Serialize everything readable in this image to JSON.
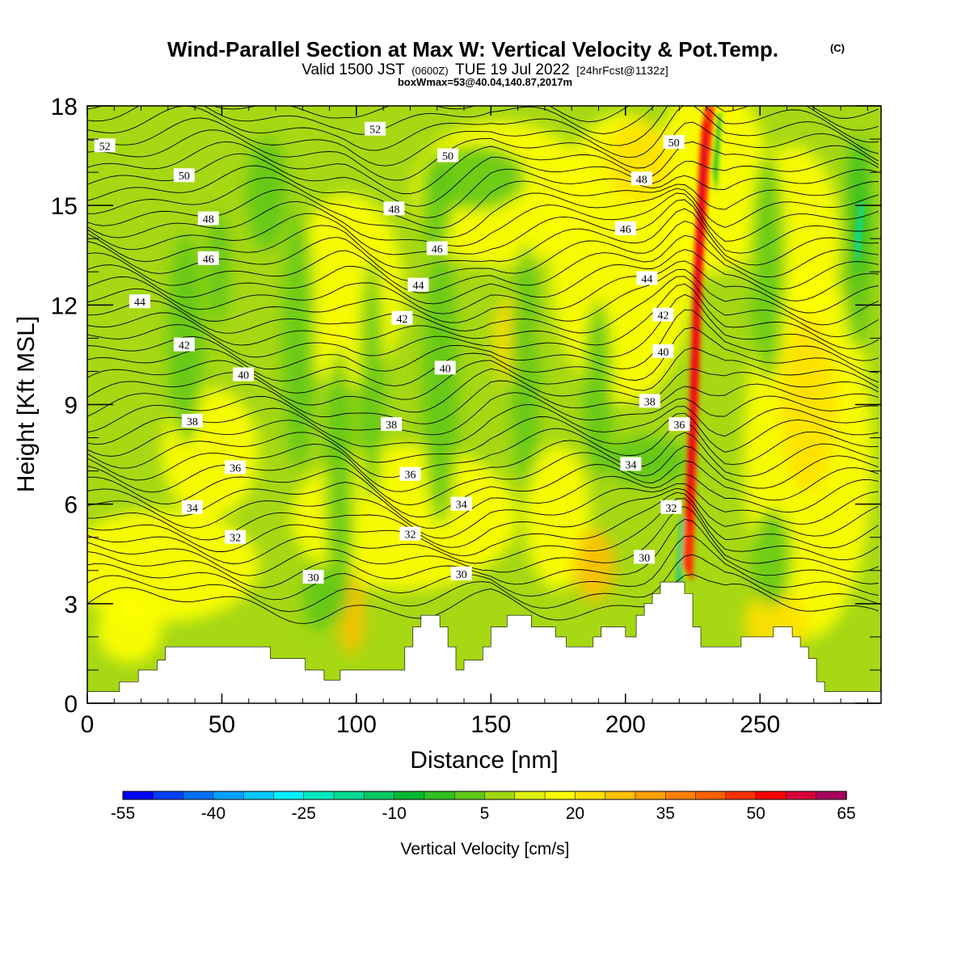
{
  "chart_data": {
    "type": "heatmap",
    "title_main": "Wind-Parallel Section at Max W: Vertical Velocity & Pot.Temp.",
    "title_mark": "(C)",
    "subtitle_a": "Valid 1500 JST",
    "subtitle_b": "(0600Z)",
    "subtitle_c": "TUE 19 Jul 2022",
    "subtitle_d": "[24hrFcst@1132z]",
    "subtitle2": "boxWmax=53@40.04,140.87,2017m",
    "xlabel": "Distance [nm]",
    "ylabel": "Height [Kft MSL]",
    "xlim": [
      0,
      295
    ],
    "ylim": [
      0,
      18
    ],
    "x_ticks": [
      0,
      50,
      100,
      150,
      200,
      250
    ],
    "y_ticks": [
      0,
      3,
      6,
      9,
      12,
      15,
      18
    ],
    "x_tick_labels": [
      "0",
      "50",
      "100",
      "150",
      "200",
      "250"
    ],
    "y_tick_labels": [
      "0",
      "3",
      "6",
      "9",
      "12",
      "15",
      "18"
    ],
    "colorbar": {
      "label": "Vertical Velocity [cm/s]",
      "tick_labels": [
        "-55",
        "-40",
        "-25",
        "-10",
        "5",
        "20",
        "35",
        "50",
        "65"
      ],
      "min": -55,
      "max": 65,
      "step": 5,
      "colors": [
        "#0000ff",
        "#0040ff",
        "#0070ff",
        "#00a0ff",
        "#00c8ff",
        "#00f0ff",
        "#00e8c0",
        "#00d890",
        "#00c860",
        "#00b830",
        "#30c020",
        "#60c818",
        "#a0d810",
        "#e0f010",
        "#ffff00",
        "#ffe000",
        "#ffc000",
        "#ffa000",
        "#ff8000",
        "#ff6000",
        "#ff3000",
        "#ff0000",
        "#d8003a",
        "#a80060"
      ]
    },
    "theta_labels": [
      {
        "text": "52",
        "x": 6.5,
        "y": 16.8
      },
      {
        "text": "52",
        "x": 107,
        "y": 17.3
      },
      {
        "text": "50",
        "x": 36,
        "y": 15.9
      },
      {
        "text": "50",
        "x": 134,
        "y": 16.5
      },
      {
        "text": "50",
        "x": 218,
        "y": 16.9
      },
      {
        "text": "48",
        "x": 45,
        "y": 14.6
      },
      {
        "text": "48",
        "x": 114,
        "y": 14.9
      },
      {
        "text": "48",
        "x": 206,
        "y": 15.8
      },
      {
        "text": "46",
        "x": 45,
        "y": 13.4
      },
      {
        "text": "46",
        "x": 130,
        "y": 13.7
      },
      {
        "text": "46",
        "x": 200,
        "y": 14.3
      },
      {
        "text": "44",
        "x": 19.5,
        "y": 12.1
      },
      {
        "text": "44",
        "x": 123,
        "y": 12.6
      },
      {
        "text": "44",
        "x": 208,
        "y": 12.8
      },
      {
        "text": "42",
        "x": 36,
        "y": 10.8
      },
      {
        "text": "42",
        "x": 117,
        "y": 11.6
      },
      {
        "text": "42",
        "x": 214,
        "y": 11.7
      },
      {
        "text": "40",
        "x": 58,
        "y": 9.9
      },
      {
        "text": "40",
        "x": 133,
        "y": 10.1
      },
      {
        "text": "40",
        "x": 214,
        "y": 10.6
      },
      {
        "text": "38",
        "x": 39,
        "y": 8.5
      },
      {
        "text": "38",
        "x": 113,
        "y": 8.4
      },
      {
        "text": "38",
        "x": 209,
        "y": 9.1
      },
      {
        "text": "36",
        "x": 55,
        "y": 7.1
      },
      {
        "text": "36",
        "x": 120,
        "y": 6.9
      },
      {
        "text": "36",
        "x": 220,
        "y": 8.4
      },
      {
        "text": "34",
        "x": 39,
        "y": 5.9
      },
      {
        "text": "34",
        "x": 139,
        "y": 6.0
      },
      {
        "text": "34",
        "x": 202,
        "y": 7.2
      },
      {
        "text": "32",
        "x": 55,
        "y": 5.0
      },
      {
        "text": "32",
        "x": 120,
        "y": 5.1
      },
      {
        "text": "32",
        "x": 217,
        "y": 5.9
      },
      {
        "text": "30",
        "x": 84,
        "y": 3.8
      },
      {
        "text": "30",
        "x": 139,
        "y": 3.9
      },
      {
        "text": "30",
        "x": 207,
        "y": 4.4
      }
    ]
  }
}
